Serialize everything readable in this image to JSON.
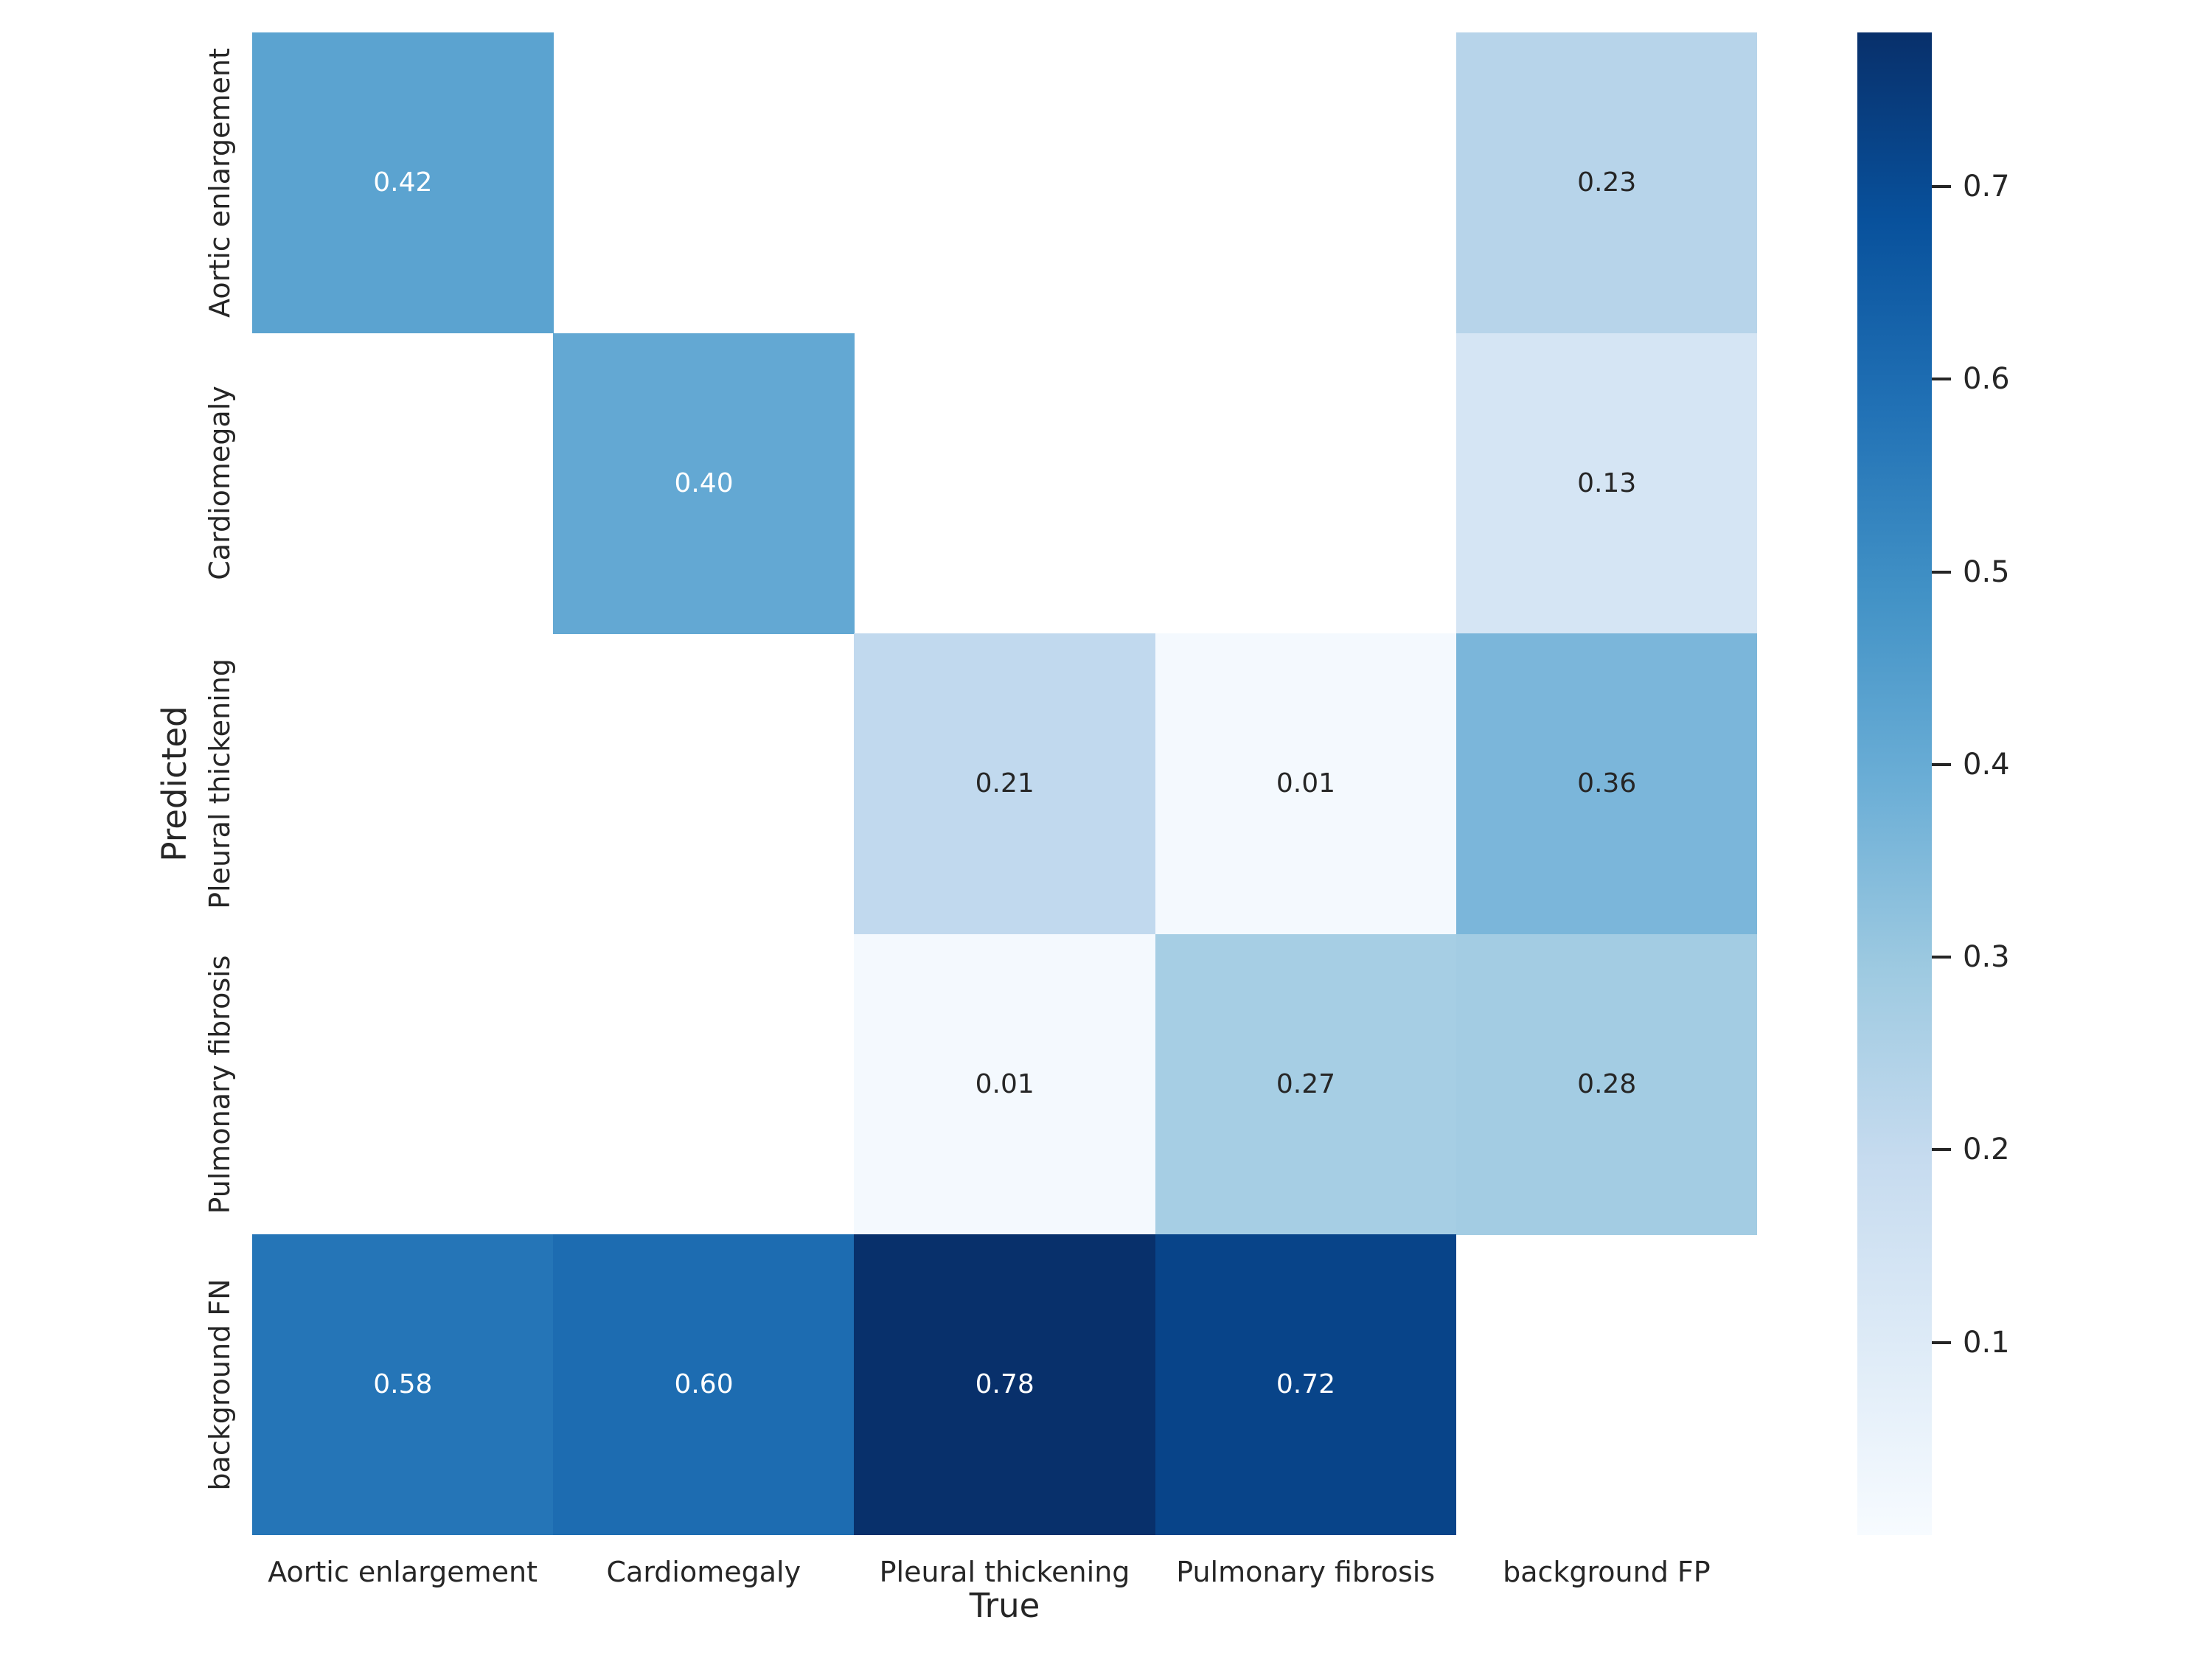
{
  "figure": {
    "background": "#ffffff",
    "text_color": "#262626"
  },
  "chart_data": {
    "type": "heatmap",
    "title": "",
    "xlabel": "True",
    "ylabel": "Predicted",
    "x_categories": [
      "Aortic enlargement",
      "Cardiomegaly",
      "Pleural thickening",
      "Pulmonary fibrosis",
      "background FP"
    ],
    "y_categories": [
      "Aortic enlargement",
      "Cardiomegaly",
      "Pleural thickening",
      "Pulmonary fibrosis",
      "background FN"
    ],
    "matrix": [
      [
        0.42,
        null,
        null,
        null,
        0.23
      ],
      [
        null,
        0.4,
        null,
        null,
        0.13
      ],
      [
        null,
        null,
        0.21,
        0.01,
        0.36
      ],
      [
        null,
        null,
        0.01,
        0.27,
        0.28
      ],
      [
        0.58,
        0.6,
        0.78,
        0.72,
        null
      ]
    ],
    "cells": [
      {
        "row": 0,
        "col": 0,
        "label": "0.42",
        "bg": "#5ba3d0",
        "fg": "#ffffff"
      },
      {
        "row": 0,
        "col": 4,
        "label": "0.23",
        "bg": "#b7d4ea",
        "fg": "#262626"
      },
      {
        "row": 1,
        "col": 1,
        "label": "0.40",
        "bg": "#63a8d3",
        "fg": "#ffffff"
      },
      {
        "row": 1,
        "col": 4,
        "label": "0.13",
        "bg": "#d5e5f4",
        "fg": "#262626"
      },
      {
        "row": 2,
        "col": 2,
        "label": "0.21",
        "bg": "#c1d9ee",
        "fg": "#262626"
      },
      {
        "row": 2,
        "col": 3,
        "label": "0.01",
        "bg": "#f4f9fe",
        "fg": "#262626"
      },
      {
        "row": 2,
        "col": 4,
        "label": "0.36",
        "bg": "#7bb6da",
        "fg": "#262626"
      },
      {
        "row": 3,
        "col": 2,
        "label": "0.01",
        "bg": "#f4f9fe",
        "fg": "#262626"
      },
      {
        "row": 3,
        "col": 3,
        "label": "0.27",
        "bg": "#a6cee4",
        "fg": "#262626"
      },
      {
        "row": 3,
        "col": 4,
        "label": "0.28",
        "bg": "#a3cce3",
        "fg": "#262626"
      },
      {
        "row": 4,
        "col": 0,
        "label": "0.58",
        "bg": "#2575b7",
        "fg": "#ffffff"
      },
      {
        "row": 4,
        "col": 1,
        "label": "0.60",
        "bg": "#1d6cb1",
        "fg": "#ffffff"
      },
      {
        "row": 4,
        "col": 2,
        "label": "0.78",
        "bg": "#08306b",
        "fg": "#ffffff"
      },
      {
        "row": 4,
        "col": 3,
        "label": "0.72",
        "bg": "#084489",
        "fg": "#ffffff"
      },
      {
        "row": 4,
        "col": 4,
        "label": null,
        "bg": null,
        "fg": null
      }
    ],
    "empty_cell_color": "#ffffff",
    "vmin": 0.0,
    "vmax": 0.78,
    "colorbar": {
      "tick_values": [
        0.7,
        0.6,
        0.5,
        0.4,
        0.3,
        0.2,
        0.1
      ],
      "tick_labels": [
        "0.7",
        "0.6",
        "0.5",
        "0.4",
        "0.3",
        "0.2",
        "0.1"
      ],
      "colormap_name": "Blues",
      "gradient_stops_bottom_to_top": [
        "#f7fbff",
        "#deebf7",
        "#c6dbef",
        "#9ecae1",
        "#6baed6",
        "#4292c6",
        "#2171b5",
        "#08519c",
        "#08306b"
      ]
    },
    "legend_position": "right-colorbar",
    "grid": false
  }
}
